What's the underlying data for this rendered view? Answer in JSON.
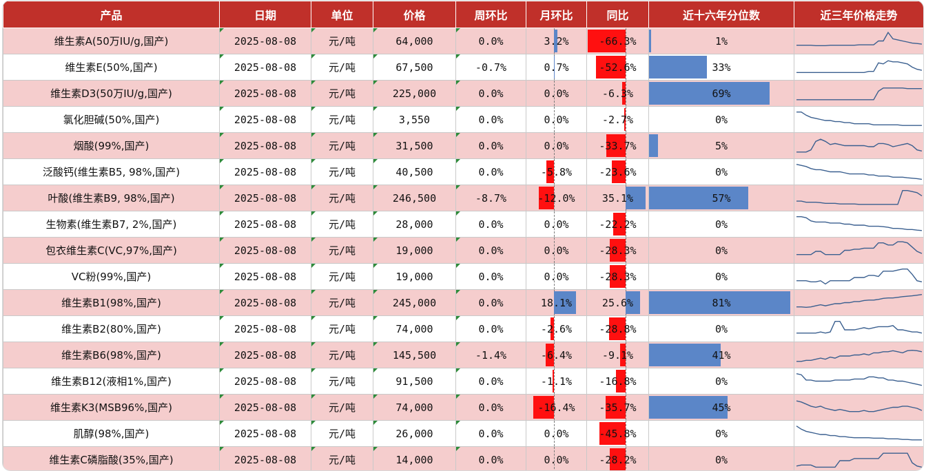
{
  "colors": {
    "header": "#c0302a",
    "row_pink": "#f5cdcd",
    "negative": "#ff1010",
    "positive": "#5b86c8",
    "sparkline": "#3a5f8f"
  },
  "chart_data": {
    "type": "table",
    "columns": [
      "产品",
      "日期",
      "单位",
      "价格",
      "周环比",
      "月环比",
      "同比",
      "近十六年分位数",
      "近三年价格走势"
    ],
    "rows": [
      {
        "product": "维生素A(50万IU/g,国产)",
        "date": "2025-08-08",
        "unit": "元/吨",
        "price": "64,000",
        "wow": "0.0%",
        "mom": "3.2%",
        "yoy": "-66.3%",
        "pct": "1%",
        "mom_v": 3.2,
        "yoy_v": -66.3,
        "pct_v": 1,
        "spark": [
          0.3,
          0.3,
          0.3,
          0.3,
          0.28,
          0.28,
          0.28,
          0.3,
          0.3,
          0.3,
          0.3,
          0.3,
          0.3,
          0.32,
          0.32,
          0.32,
          0.32,
          0.5,
          0.5,
          0.9,
          0.6,
          0.55,
          0.5,
          0.45,
          0.4,
          0.38,
          0.35
        ]
      },
      {
        "product": "维生素E(50%,国产)",
        "date": "2025-08-08",
        "unit": "元/吨",
        "price": "67,500",
        "wow": "-0.7%",
        "mom": "0.7%",
        "yoy": "-52.6%",
        "pct": "33%",
        "mom_v": 0.7,
        "yoy_v": -52.6,
        "pct_v": 33,
        "spark": [
          0.25,
          0.25,
          0.25,
          0.25,
          0.25,
          0.25,
          0.25,
          0.25,
          0.25,
          0.25,
          0.25,
          0.25,
          0.25,
          0.25,
          0.25,
          0.3,
          0.3,
          0.7,
          0.65,
          0.8,
          0.75,
          0.75,
          0.7,
          0.65,
          0.5,
          0.4,
          0.35
        ]
      },
      {
        "product": "维生素D3(50万IU/g,国产)",
        "date": "2025-08-08",
        "unit": "元/吨",
        "price": "225,000",
        "wow": "0.0%",
        "mom": "0.0%",
        "yoy": "-6.3%",
        "pct": "69%",
        "mom_v": 0,
        "yoy_v": -6.3,
        "pct_v": 69,
        "spark": [
          0.2,
          0.2,
          0.2,
          0.2,
          0.2,
          0.2,
          0.2,
          0.2,
          0.2,
          0.2,
          0.2,
          0.2,
          0.2,
          0.2,
          0.2,
          0.2,
          0.2,
          0.6,
          0.75,
          0.75,
          0.75,
          0.75,
          0.75,
          0.72,
          0.72,
          0.72,
          0.72
        ]
      },
      {
        "product": "氯化胆碱(50%,国产)",
        "date": "2025-08-08",
        "unit": "元/吨",
        "price": "3,550",
        "wow": "0.0%",
        "mom": "0.0%",
        "yoy": "-2.7%",
        "pct": "0%",
        "mom_v": 0,
        "yoy_v": -2.7,
        "pct_v": 0,
        "spark": [
          0.85,
          0.85,
          0.7,
          0.6,
          0.55,
          0.5,
          0.45,
          0.45,
          0.4,
          0.4,
          0.35,
          0.35,
          0.3,
          0.3,
          0.3,
          0.3,
          0.25,
          0.25,
          0.25,
          0.25,
          0.25,
          0.25,
          0.22,
          0.22,
          0.22,
          0.22,
          0.22
        ]
      },
      {
        "product": "烟酸(99%,国产)",
        "date": "2025-08-08",
        "unit": "元/吨",
        "price": "31,500",
        "wow": "0.0%",
        "mom": "0.0%",
        "yoy": "-33.7%",
        "pct": "5%",
        "mom_v": 0,
        "yoy_v": -33.7,
        "pct_v": 5,
        "spark": [
          0.2,
          0.2,
          0.2,
          0.3,
          0.7,
          0.8,
          0.7,
          0.55,
          0.6,
          0.55,
          0.5,
          0.5,
          0.5,
          0.5,
          0.5,
          0.45,
          0.45,
          0.6,
          0.6,
          0.55,
          0.45,
          0.5,
          0.55,
          0.6,
          0.5,
          0.3,
          0.25
        ]
      },
      {
        "product": "泛酸钙(维生素B5, 98%,国产)",
        "date": "2025-08-08",
        "unit": "元/吨",
        "price": "40,500",
        "wow": "0.0%",
        "mom": "-5.8%",
        "yoy": "-23.6%",
        "pct": "0%",
        "mom_v": -5.8,
        "yoy_v": -23.6,
        "pct_v": 0,
        "spark": [
          0.85,
          0.8,
          0.75,
          0.65,
          0.6,
          0.6,
          0.55,
          0.5,
          0.5,
          0.5,
          0.45,
          0.4,
          0.4,
          0.4,
          0.4,
          0.35,
          0.35,
          0.3,
          0.3,
          0.3,
          0.25,
          0.25,
          0.25,
          0.22,
          0.2,
          0.18,
          0.15
        ]
      },
      {
        "product": "叶酸(维生素B9, 98%,国产)",
        "date": "2025-08-08",
        "unit": "元/吨",
        "price": "246,500",
        "wow": "-8.7%",
        "mom": "-12.0%",
        "yoy": "35.1%",
        "pct": "57%",
        "mom_v": -12,
        "yoy_v": 35.1,
        "pct_v": 57,
        "spark": [
          0.35,
          0.35,
          0.3,
          0.3,
          0.3,
          0.28,
          0.25,
          0.25,
          0.25,
          0.22,
          0.22,
          0.22,
          0.22,
          0.2,
          0.2,
          0.2,
          0.2,
          0.2,
          0.2,
          0.2,
          0.2,
          0.2,
          0.85,
          0.85,
          0.8,
          0.75,
          0.6
        ]
      },
      {
        "product": "生物素(维生素B7, 2%,国产)",
        "date": "2025-08-08",
        "unit": "元/吨",
        "price": "28,000",
        "wow": "0.0%",
        "mom": "0.0%",
        "yoy": "-22.2%",
        "pct": "0%",
        "mom_v": 0,
        "yoy_v": -22.2,
        "pct_v": 0,
        "spark": [
          0.85,
          0.85,
          0.8,
          0.65,
          0.6,
          0.6,
          0.6,
          0.55,
          0.55,
          0.55,
          0.5,
          0.5,
          0.45,
          0.45,
          0.45,
          0.4,
          0.4,
          0.4,
          0.38,
          0.35,
          0.3,
          0.3,
          0.28,
          0.25,
          0.25,
          0.22,
          0.2
        ]
      },
      {
        "product": "包衣维生素C(VC,97%,国产)",
        "date": "2025-08-08",
        "unit": "元/吨",
        "price": "19,000",
        "wow": "0.0%",
        "mom": "0.0%",
        "yoy": "-28.3%",
        "pct": "0%",
        "mom_v": 0,
        "yoy_v": -28.3,
        "pct_v": 0,
        "spark": [
          0.3,
          0.3,
          0.3,
          0.3,
          0.45,
          0.45,
          0.3,
          0.3,
          0.3,
          0.3,
          0.5,
          0.5,
          0.55,
          0.55,
          0.6,
          0.6,
          0.6,
          0.85,
          0.85,
          0.75,
          0.75,
          0.9,
          0.9,
          0.85,
          0.65,
          0.45,
          0.35
        ]
      },
      {
        "product": "VC粉(99%,国产)",
        "date": "2025-08-08",
        "unit": "元/吨",
        "price": "19,000",
        "wow": "0.0%",
        "mom": "0.0%",
        "yoy": "-28.3%",
        "pct": "0%",
        "mom_v": 0,
        "yoy_v": -28.3,
        "pct_v": 0,
        "spark": [
          0.3,
          0.3,
          0.3,
          0.25,
          0.25,
          0.3,
          0.15,
          0.3,
          0.3,
          0.3,
          0.3,
          0.3,
          0.45,
          0.45,
          0.45,
          0.55,
          0.55,
          0.5,
          0.75,
          0.75,
          0.75,
          0.8,
          0.85,
          0.85,
          0.6,
          0.3,
          0.25
        ]
      },
      {
        "product": "维生素B1(98%,国产)",
        "date": "2025-08-08",
        "unit": "元/吨",
        "price": "245,000",
        "wow": "0.0%",
        "mom": "18.1%",
        "yoy": "25.6%",
        "pct": "81%",
        "mom_v": 18.1,
        "yoy_v": 25.6,
        "pct_v": 81,
        "spark": [
          0.3,
          0.3,
          0.28,
          0.3,
          0.35,
          0.4,
          0.35,
          0.4,
          0.45,
          0.45,
          0.5,
          0.5,
          0.55,
          0.55,
          0.6,
          0.62,
          0.62,
          0.65,
          0.7,
          0.72,
          0.72,
          0.75,
          0.78,
          0.8,
          0.82,
          0.85,
          0.88
        ]
      },
      {
        "product": "维生素B2(80%,国产)",
        "date": "2025-08-08",
        "unit": "元/吨",
        "price": "74,000",
        "wow": "0.0%",
        "mom": "-2.6%",
        "yoy": "-28.8%",
        "pct": "0%",
        "mom_v": -2.6,
        "yoy_v": -28.8,
        "pct_v": 0,
        "spark": [
          0.3,
          0.3,
          0.3,
          0.3,
          0.3,
          0.35,
          0.3,
          0.35,
          0.85,
          0.85,
          0.45,
          0.45,
          0.45,
          0.5,
          0.55,
          0.5,
          0.55,
          0.6,
          0.6,
          0.6,
          0.65,
          0.45,
          0.45,
          0.4,
          0.35,
          0.35,
          0.3
        ]
      },
      {
        "product": "维生素B6(98%,国产)",
        "date": "2025-08-08",
        "unit": "元/吨",
        "price": "145,500",
        "wow": "-1.4%",
        "mom": "-6.4%",
        "yoy": "-9.1%",
        "pct": "41%",
        "mom_v": -6.4,
        "yoy_v": -9.1,
        "pct_v": 41,
        "spark": [
          0.2,
          0.2,
          0.25,
          0.25,
          0.3,
          0.35,
          0.3,
          0.4,
          0.35,
          0.45,
          0.45,
          0.45,
          0.5,
          0.5,
          0.55,
          0.5,
          0.6,
          0.6,
          0.65,
          0.65,
          0.7,
          0.65,
          0.6,
          0.7,
          0.72,
          0.7,
          0.65
        ]
      },
      {
        "product": "维生素B12(液相1%,国产)",
        "date": "2025-08-08",
        "unit": "元/吨",
        "price": "91,500",
        "wow": "0.0%",
        "mom": "-1.1%",
        "yoy": "-16.8%",
        "pct": "0%",
        "mom_v": -1.1,
        "yoy_v": -16.8,
        "pct_v": 0,
        "spark": [
          0.85,
          0.8,
          0.55,
          0.55,
          0.5,
          0.5,
          0.5,
          0.5,
          0.55,
          0.55,
          0.55,
          0.55,
          0.6,
          0.6,
          0.6,
          0.7,
          0.7,
          0.65,
          0.65,
          0.55,
          0.55,
          0.5,
          0.5,
          0.45,
          0.4,
          0.35,
          0.3
        ]
      },
      {
        "product": "维生素K3(MSB96%,国产)",
        "date": "2025-08-08",
        "unit": "元/吨",
        "price": "74,000",
        "wow": "0.0%",
        "mom": "-16.4%",
        "yoy": "-35.7%",
        "pct": "45%",
        "mom_v": -16.4,
        "yoy_v": -35.7,
        "pct_v": 45,
        "spark": [
          0.8,
          0.75,
          0.65,
          0.55,
          0.5,
          0.55,
          0.45,
          0.4,
          0.35,
          0.4,
          0.35,
          0.3,
          0.3,
          0.3,
          0.35,
          0.3,
          0.3,
          0.35,
          0.4,
          0.45,
          0.5,
          0.5,
          0.55,
          0.55,
          0.5,
          0.45,
          0.35
        ]
      },
      {
        "product": "肌醇(98%,国产)",
        "date": "2025-08-08",
        "unit": "元/吨",
        "price": "26,000",
        "wow": "0.0%",
        "mom": "0.0%",
        "yoy": "-45.8%",
        "pct": "0%",
        "mom_v": 0,
        "yoy_v": -45.8,
        "pct_v": 0,
        "spark": [
          0.85,
          0.7,
          0.6,
          0.55,
          0.5,
          0.45,
          0.45,
          0.4,
          0.4,
          0.35,
          0.35,
          0.32,
          0.3,
          0.3,
          0.3,
          0.3,
          0.28,
          0.28,
          0.28,
          0.25,
          0.25,
          0.25,
          0.22,
          0.22,
          0.2,
          0.2,
          0.2
        ]
      },
      {
        "product": "维生素C磷脂酸(35%,国产)",
        "date": "2025-08-08",
        "unit": "元/吨",
        "price": "14,000",
        "wow": "0.0%",
        "mom": "0.0%",
        "yoy": "-28.2%",
        "pct": "0%",
        "mom_v": 0,
        "yoy_v": -28.2,
        "pct_v": 0,
        "spark": [
          0.2,
          0.25,
          0.25,
          0.25,
          0.15,
          0.15,
          0.15,
          0.15,
          0.15,
          0.45,
          0.45,
          0.45,
          0.55,
          0.55,
          0.55,
          0.55,
          0.55,
          0.55,
          0.8,
          0.8,
          0.8,
          0.8,
          0.8,
          0.8,
          0.35,
          0.2,
          0.15
        ]
      }
    ]
  }
}
